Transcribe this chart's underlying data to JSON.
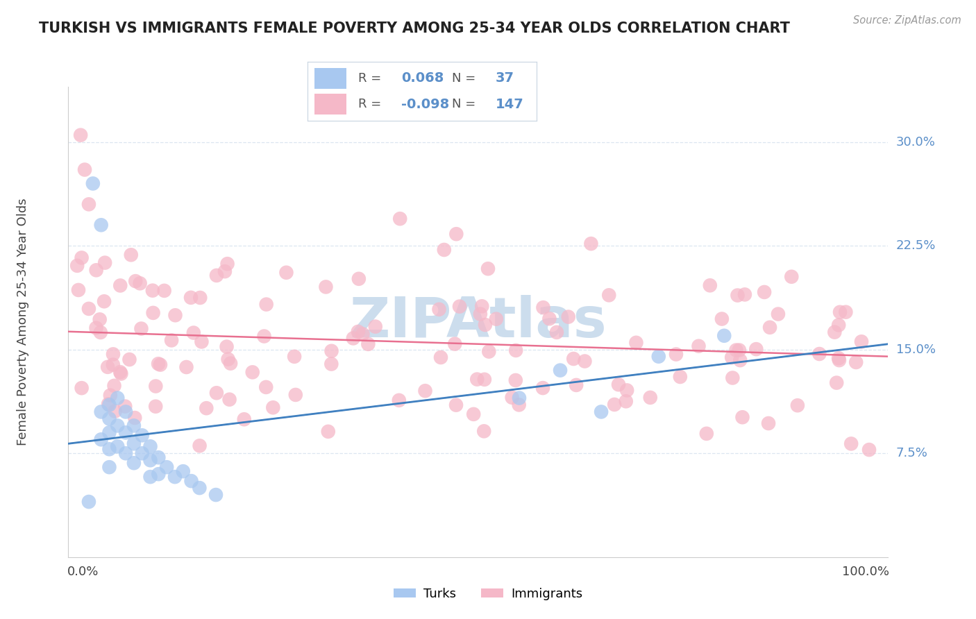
{
  "title": "TURKISH VS IMMIGRANTS FEMALE POVERTY AMONG 25-34 YEAR OLDS CORRELATION CHART",
  "source": "Source: ZipAtlas.com",
  "ylabel": "Female Poverty Among 25-34 Year Olds",
  "turks_R": "0.068",
  "turks_N": "37",
  "immigrants_R": "-0.098",
  "immigrants_N": "147",
  "xlim": [
    0.0,
    1.0
  ],
  "ylim": [
    0.0,
    0.34
  ],
  "yticks": [
    0.075,
    0.15,
    0.225,
    0.3
  ],
  "ytick_labels": [
    "7.5%",
    "15.0%",
    "22.5%",
    "30.0%"
  ],
  "background_color": "#ffffff",
  "grid_color": "#dce6f0",
  "turks_color": "#a8c8f0",
  "immigrants_color": "#f5b8c8",
  "turks_line_color": "#4080c0",
  "turks_dash_color": "#90bce0",
  "immigrants_line_color": "#e87090",
  "watermark_color": "#ccdded",
  "label_color": "#5b8fc9",
  "text_color": "#444444",
  "source_color": "#999999"
}
